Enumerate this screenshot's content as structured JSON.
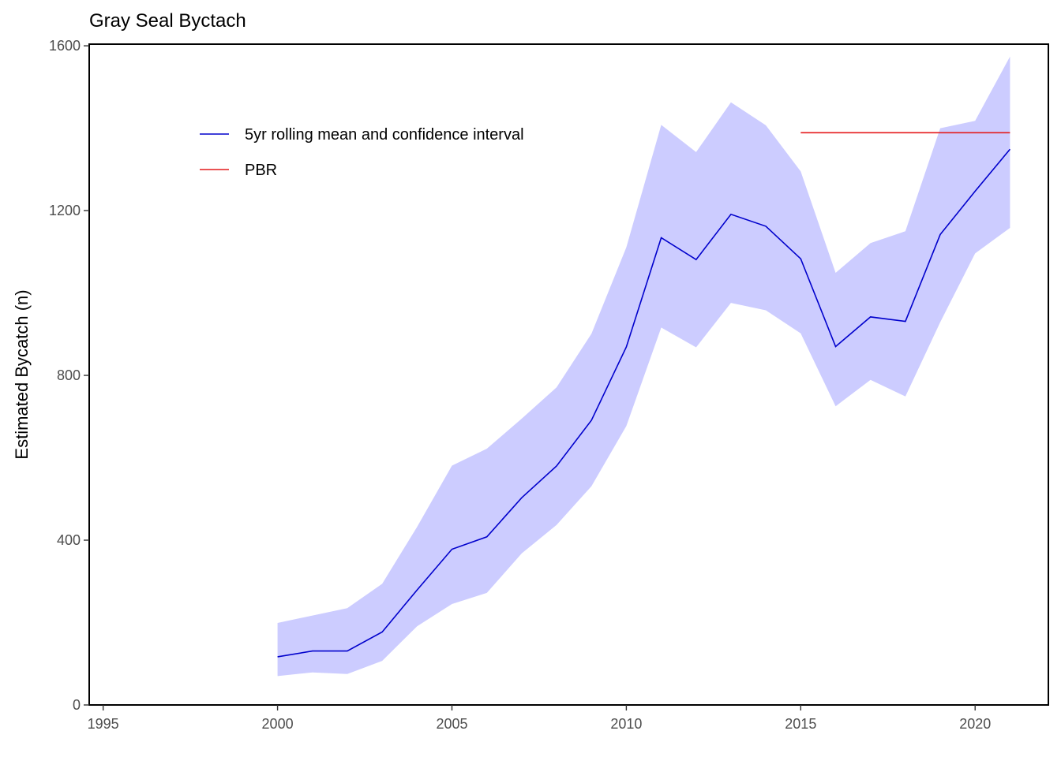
{
  "chart_data": {
    "type": "line",
    "title": "Gray Seal Byctach",
    "xlabel": "",
    "ylabel": "Estimated Bycatch (n)",
    "xlim": [
      1994.6,
      2022.1
    ],
    "ylim": [
      0,
      1604
    ],
    "x_ticks": [
      1995,
      2000,
      2005,
      2010,
      2015,
      2020
    ],
    "y_ticks": [
      0,
      400,
      800,
      1200,
      1600
    ],
    "grid": false,
    "legend_position": "top-left",
    "series": [
      {
        "name": "5yr rolling mean and confidence interval",
        "color": "#0000cc",
        "band_color": "#ccccff",
        "x": [
          2000,
          2001,
          2002,
          2003,
          2004,
          2005,
          2006,
          2007,
          2008,
          2009,
          2010,
          2011,
          2012,
          2013,
          2014,
          2015,
          2016,
          2017,
          2018,
          2019,
          2020,
          2021
        ],
        "mean": [
          117,
          131,
          131,
          177,
          279,
          378,
          408,
          503,
          580,
          691,
          869,
          1134,
          1081,
          1191,
          1162,
          1083,
          870,
          942,
          931,
          1142,
          1247,
          1349
        ],
        "lower": [
          70,
          79,
          75,
          107,
          191,
          245,
          272,
          368,
          437,
          531,
          677,
          916,
          868,
          976,
          958,
          902,
          725,
          789,
          749,
          929,
          1096,
          1158
        ],
        "upper": [
          199,
          217,
          235,
          294,
          432,
          581,
          622,
          695,
          771,
          901,
          1111,
          1408,
          1342,
          1463,
          1407,
          1295,
          1049,
          1121,
          1150,
          1400,
          1418,
          1574
        ]
      },
      {
        "name": "PBR",
        "color": "#e41a1c",
        "x": [
          2015,
          2021
        ],
        "y": [
          1389,
          1389
        ]
      }
    ]
  }
}
